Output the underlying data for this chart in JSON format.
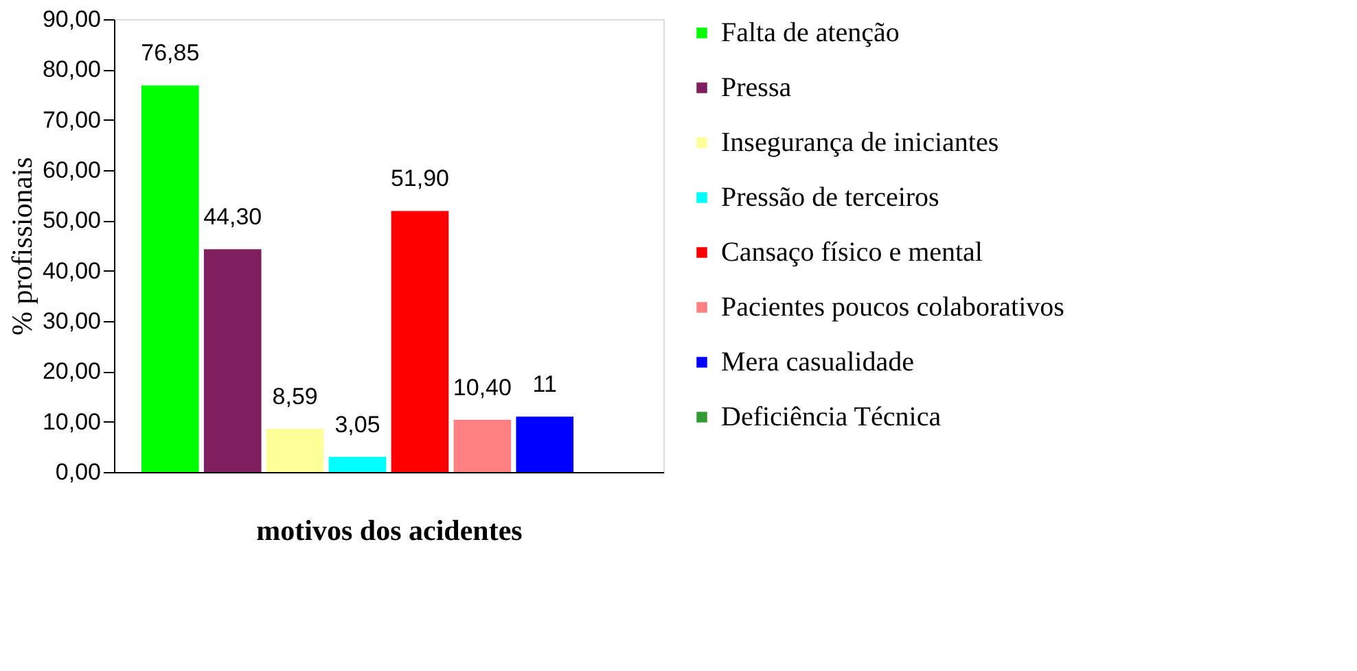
{
  "chart_data": {
    "type": "bar",
    "ylabel": "% profissionais",
    "xlabel": "motivos dos acidentes",
    "categories": [
      null
    ],
    "series": [
      {
        "name": "Falta de atenção",
        "color": "#00ff00",
        "values": [
          76.85
        ],
        "value_labels": [
          "76,85"
        ]
      },
      {
        "name": "Pressa",
        "color": "#7f1f5f",
        "values": [
          44.3
        ],
        "value_labels": [
          "44,30"
        ]
      },
      {
        "name": "Insegurança de iniciantes",
        "color": "#ffff99",
        "values": [
          8.59
        ],
        "value_labels": [
          "8,59"
        ]
      },
      {
        "name": "Pressão de terceiros",
        "color": "#00ffff",
        "values": [
          3.05
        ],
        "value_labels": [
          "3,05"
        ]
      },
      {
        "name": "Cansaço físico e mental",
        "color": "#ff0000",
        "values": [
          51.9
        ],
        "value_labels": [
          "51,90"
        ]
      },
      {
        "name": "Pacientes poucos colaborativos",
        "color": "#ff8080",
        "values": [
          10.4
        ],
        "value_labels": [
          "10,40"
        ]
      },
      {
        "name": "Mera casualidade",
        "color": "#0000ff",
        "values": [
          11
        ],
        "value_labels": [
          "11"
        ]
      },
      {
        "name": "Deficiência Técnica",
        "color": "#339933",
        "values": [
          null
        ],
        "value_labels": [
          null
        ]
      }
    ],
    "ylim": [
      0,
      90
    ],
    "yticks": [
      {
        "value": 0,
        "label": "0,00"
      },
      {
        "value": 10,
        "label": "10,00"
      },
      {
        "value": 20,
        "label": "20,00"
      },
      {
        "value": 30,
        "label": "30,00"
      },
      {
        "value": 40,
        "label": "40,00"
      },
      {
        "value": 50,
        "label": "50,00"
      },
      {
        "value": 60,
        "label": "60,00"
      },
      {
        "value": 70,
        "label": "70,00"
      },
      {
        "value": 80,
        "label": "80,00"
      },
      {
        "value": 90,
        "label": "90,00"
      }
    ],
    "grid": false,
    "legend": "right"
  }
}
